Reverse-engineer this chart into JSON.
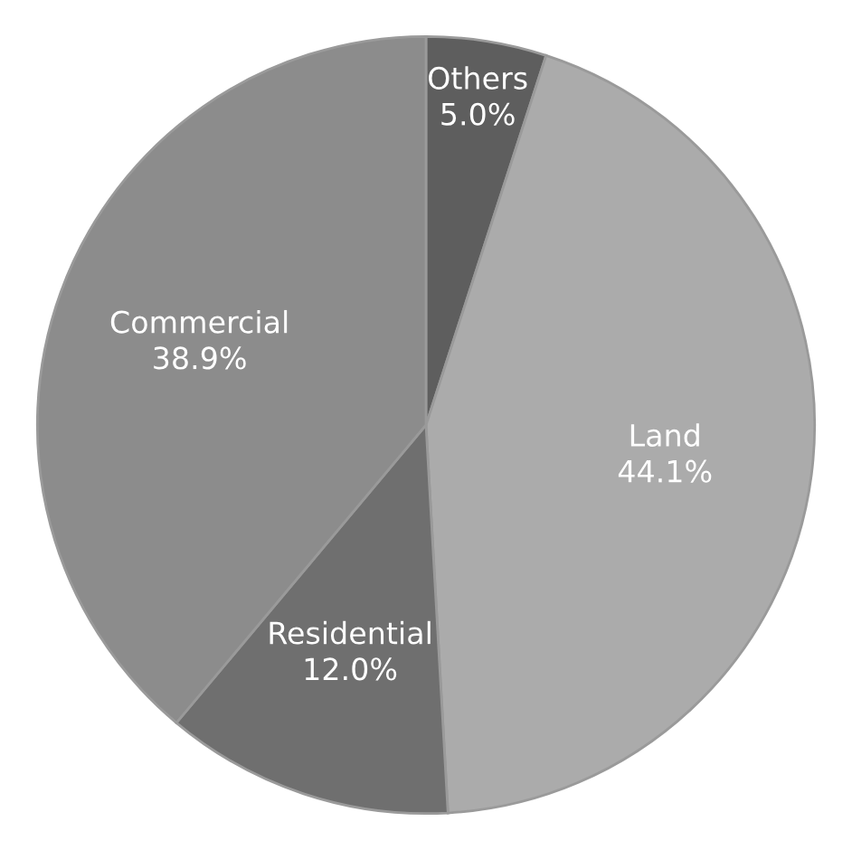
{
  "chart_data": {
    "type": "pie",
    "categories": [
      "Others",
      "Land",
      "Residential",
      "Commercial"
    ],
    "values": [
      5.0,
      44.1,
      12.0,
      38.9
    ],
    "colors": [
      "#5e5e5e",
      "#ababab",
      "#6f6f6f",
      "#8c8c8c"
    ],
    "value_labels": [
      "5.0%",
      "44.1%",
      "12.0%",
      "38.9%"
    ]
  }
}
